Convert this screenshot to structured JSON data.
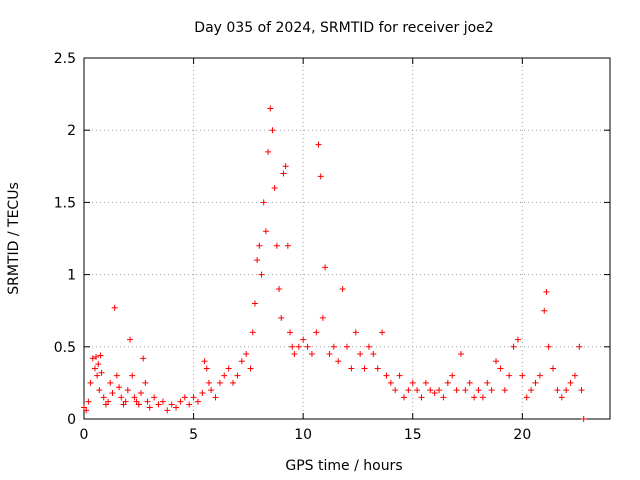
{
  "chart_data": {
    "type": "scatter",
    "title": "Day 035 of 2024, SRMTID for receiver joe2",
    "xlabel": "GPS time / hours",
    "ylabel": "SRMTID / TECUs",
    "xlim": [
      0,
      24
    ],
    "ylim": [
      0,
      2.5
    ],
    "x_ticks": [
      0,
      5,
      10,
      15,
      20
    ],
    "x_tick_labels": [
      "0",
      "5",
      "10",
      "15",
      "20"
    ],
    "y_ticks": [
      0,
      0.5,
      1,
      1.5,
      2,
      2.5
    ],
    "y_tick_labels": [
      "0",
      "0.5",
      "1",
      "1.5",
      "2",
      "2.5"
    ],
    "grid": true,
    "marker": "+",
    "color": "#ff0000",
    "series": [
      {
        "name": "SRMTID",
        "x": [
          0.0,
          0.1,
          0.2,
          0.3,
          0.4,
          0.5,
          0.55,
          0.6,
          0.65,
          0.7,
          0.75,
          0.8,
          0.9,
          1.0,
          1.1,
          1.2,
          1.3,
          1.4,
          1.5,
          1.6,
          1.7,
          1.8,
          1.9,
          2.0,
          2.1,
          2.2,
          2.3,
          2.4,
          2.5,
          2.6,
          2.7,
          2.8,
          2.9,
          3.0,
          3.2,
          3.4,
          3.6,
          3.8,
          4.0,
          4.2,
          4.4,
          4.6,
          4.8,
          5.0,
          5.2,
          5.4,
          5.5,
          5.6,
          5.7,
          5.8,
          6.0,
          6.2,
          6.4,
          6.6,
          6.8,
          7.0,
          7.2,
          7.4,
          7.6,
          7.7,
          7.8,
          7.9,
          8.0,
          8.1,
          8.2,
          8.3,
          8.4,
          8.5,
          8.6,
          8.7,
          8.8,
          8.9,
          9.0,
          9.1,
          9.2,
          9.3,
          9.4,
          9.5,
          9.6,
          9.8,
          10.0,
          10.2,
          10.4,
          10.6,
          10.7,
          10.8,
          10.9,
          11.0,
          11.2,
          11.4,
          11.6,
          11.8,
          12.0,
          12.2,
          12.4,
          12.6,
          12.8,
          13.0,
          13.2,
          13.4,
          13.6,
          13.8,
          14.0,
          14.2,
          14.4,
          14.6,
          14.8,
          15.0,
          15.2,
          15.4,
          15.6,
          15.8,
          16.0,
          16.2,
          16.4,
          16.6,
          16.8,
          17.0,
          17.2,
          17.4,
          17.6,
          17.8,
          18.0,
          18.2,
          18.4,
          18.6,
          18.8,
          19.0,
          19.2,
          19.4,
          19.6,
          19.8,
          20.0,
          20.2,
          20.4,
          20.6,
          20.8,
          21.0,
          21.1,
          21.2,
          21.4,
          21.6,
          21.8,
          22.0,
          22.2,
          22.4,
          22.6,
          22.7,
          22.8
        ],
        "y": [
          0.08,
          0.06,
          0.12,
          0.25,
          0.42,
          0.35,
          0.43,
          0.3,
          0.38,
          0.2,
          0.44,
          0.32,
          0.15,
          0.1,
          0.12,
          0.25,
          0.18,
          0.77,
          0.3,
          0.22,
          0.15,
          0.1,
          0.12,
          0.2,
          0.55,
          0.3,
          0.15,
          0.12,
          0.1,
          0.18,
          0.42,
          0.25,
          0.12,
          0.08,
          0.15,
          0.1,
          0.12,
          0.06,
          0.1,
          0.08,
          0.12,
          0.15,
          0.1,
          0.15,
          0.12,
          0.18,
          0.4,
          0.35,
          0.25,
          0.2,
          0.15,
          0.25,
          0.3,
          0.35,
          0.25,
          0.3,
          0.4,
          0.45,
          0.35,
          0.6,
          0.8,
          1.1,
          1.2,
          1.0,
          1.5,
          1.3,
          1.85,
          2.15,
          2.0,
          1.6,
          1.2,
          0.9,
          0.7,
          1.7,
          1.75,
          1.2,
          0.6,
          0.5,
          0.45,
          0.5,
          0.55,
          0.5,
          0.45,
          0.6,
          1.9,
          1.68,
          0.7,
          1.05,
          0.45,
          0.5,
          0.4,
          0.9,
          0.5,
          0.35,
          0.6,
          0.45,
          0.35,
          0.5,
          0.45,
          0.35,
          0.6,
          0.3,
          0.25,
          0.2,
          0.3,
          0.15,
          0.2,
          0.25,
          0.2,
          0.15,
          0.25,
          0.2,
          0.18,
          0.2,
          0.15,
          0.25,
          0.3,
          0.2,
          0.45,
          0.2,
          0.25,
          0.15,
          0.2,
          0.15,
          0.25,
          0.2,
          0.4,
          0.35,
          0.2,
          0.3,
          0.5,
          0.55,
          0.3,
          0.15,
          0.2,
          0.25,
          0.3,
          0.75,
          0.88,
          0.5,
          0.35,
          0.2,
          0.15,
          0.2,
          0.25,
          0.3,
          0.5,
          0.2,
          0.0
        ]
      }
    ]
  }
}
